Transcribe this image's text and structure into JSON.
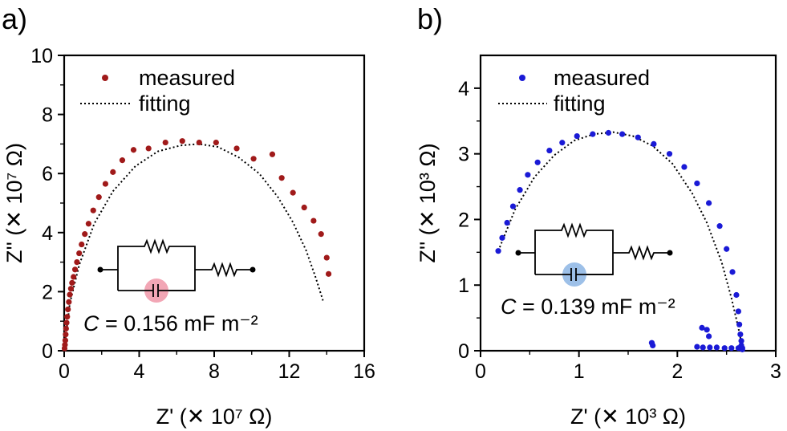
{
  "chart_data": [
    {
      "type": "scatter",
      "panel_label": "a)",
      "xlabel": "Z' (✕ 10⁷ Ω)",
      "ylabel": "Z'' (✕ 10⁷ Ω)",
      "xlim": [
        0,
        16
      ],
      "ylim": [
        0,
        10
      ],
      "xticks": [
        "0",
        "4",
        "8",
        "12",
        "16"
      ],
      "yticks": [
        "0",
        "2",
        "4",
        "6",
        "8",
        "10"
      ],
      "legend_position": "top-left",
      "marker_color": "#a01a1a",
      "highlight_color": "#f2a6b5",
      "annotation": "C = 0.156 mF m⁻²",
      "series": [
        {
          "name": "measured",
          "x": [
            0.02,
            0.04,
            0.06,
            0.08,
            0.1,
            0.13,
            0.16,
            0.2,
            0.25,
            0.3,
            0.36,
            0.42,
            0.5,
            0.58,
            0.68,
            0.8,
            0.93,
            1.1,
            1.3,
            1.55,
            1.85,
            2.2,
            2.6,
            3.1,
            3.7,
            4.5,
            5.4,
            6.3,
            7.2,
            8.1,
            9.2,
            10.1,
            11.1,
            11.6,
            12.2,
            12.8,
            13.3,
            13.7,
            14.0,
            14.1
          ],
          "y": [
            0.08,
            0.2,
            0.35,
            0.55,
            0.75,
            0.95,
            1.15,
            1.4,
            1.65,
            1.9,
            2.1,
            2.3,
            2.5,
            2.75,
            3.0,
            3.3,
            3.6,
            3.95,
            4.3,
            4.75,
            5.2,
            5.65,
            6.05,
            6.45,
            6.8,
            6.85,
            7.05,
            7.1,
            7.05,
            7.05,
            6.85,
            6.5,
            6.65,
            5.85,
            5.35,
            4.85,
            4.4,
            3.95,
            3.15,
            2.6
          ]
        },
        {
          "name": "fitting",
          "x": [
            0.0,
            0.3,
            0.8,
            1.6,
            2.6,
            3.8,
            5.0,
            6.2,
            7.2,
            8.2,
            9.3,
            10.4,
            11.4,
            12.2,
            12.9,
            13.4,
            13.8
          ],
          "y": [
            0.0,
            1.6,
            2.9,
            4.3,
            5.4,
            6.25,
            6.75,
            6.95,
            7.0,
            6.9,
            6.55,
            6.0,
            5.2,
            4.35,
            3.4,
            2.5,
            1.7
          ]
        }
      ]
    },
    {
      "type": "scatter",
      "panel_label": "b)",
      "xlabel": "Z' (✕ 10³ Ω)",
      "ylabel": "Z'' (✕ 10³ Ω)",
      "xlim": [
        0,
        3
      ],
      "ylim": [
        0,
        4.5
      ],
      "xticks": [
        "0",
        "1",
        "2",
        "3"
      ],
      "yticks": [
        "0",
        "1",
        "2",
        "3",
        "4"
      ],
      "legend_position": "top-left",
      "marker_color": "#1a1ad6",
      "highlight_color": "#9dc0e8",
      "annotation": "C = 0.139 mF m⁻²",
      "series": [
        {
          "name": "measured",
          "x": [
            0.18,
            0.22,
            0.27,
            0.33,
            0.4,
            0.48,
            0.58,
            0.7,
            0.83,
            0.98,
            1.14,
            1.3,
            1.44,
            1.6,
            1.76,
            1.92,
            2.07,
            2.2,
            2.32,
            2.43,
            2.5,
            2.56,
            2.6,
            2.62,
            2.63,
            2.64,
            2.65,
            2.65,
            2.66,
            2.66,
            2.62,
            2.55,
            2.48,
            2.4,
            2.33,
            2.26,
            2.2,
            2.25,
            2.3,
            2.32,
            1.75,
            1.74
          ],
          "y": [
            1.52,
            1.72,
            1.95,
            2.2,
            2.45,
            2.68,
            2.87,
            3.05,
            3.17,
            3.27,
            3.3,
            3.32,
            3.3,
            3.25,
            3.15,
            3.0,
            2.8,
            2.55,
            2.25,
            1.9,
            1.55,
            1.2,
            0.85,
            0.6,
            0.4,
            0.25,
            0.15,
            0.08,
            0.04,
            0.02,
            0.04,
            0.04,
            0.04,
            0.05,
            0.05,
            0.05,
            0.06,
            0.35,
            0.32,
            0.22,
            0.08,
            0.12
          ]
        },
        {
          "name": "fitting",
          "x": [
            0.18,
            0.35,
            0.55,
            0.75,
            0.95,
            1.15,
            1.35,
            1.55,
            1.75,
            1.95,
            2.15,
            2.3,
            2.45,
            2.55,
            2.62,
            2.66
          ],
          "y": [
            1.52,
            2.15,
            2.65,
            2.98,
            3.2,
            3.3,
            3.33,
            3.27,
            3.12,
            2.85,
            2.4,
            1.95,
            1.35,
            0.8,
            0.35,
            0.05
          ]
        }
      ]
    }
  ]
}
